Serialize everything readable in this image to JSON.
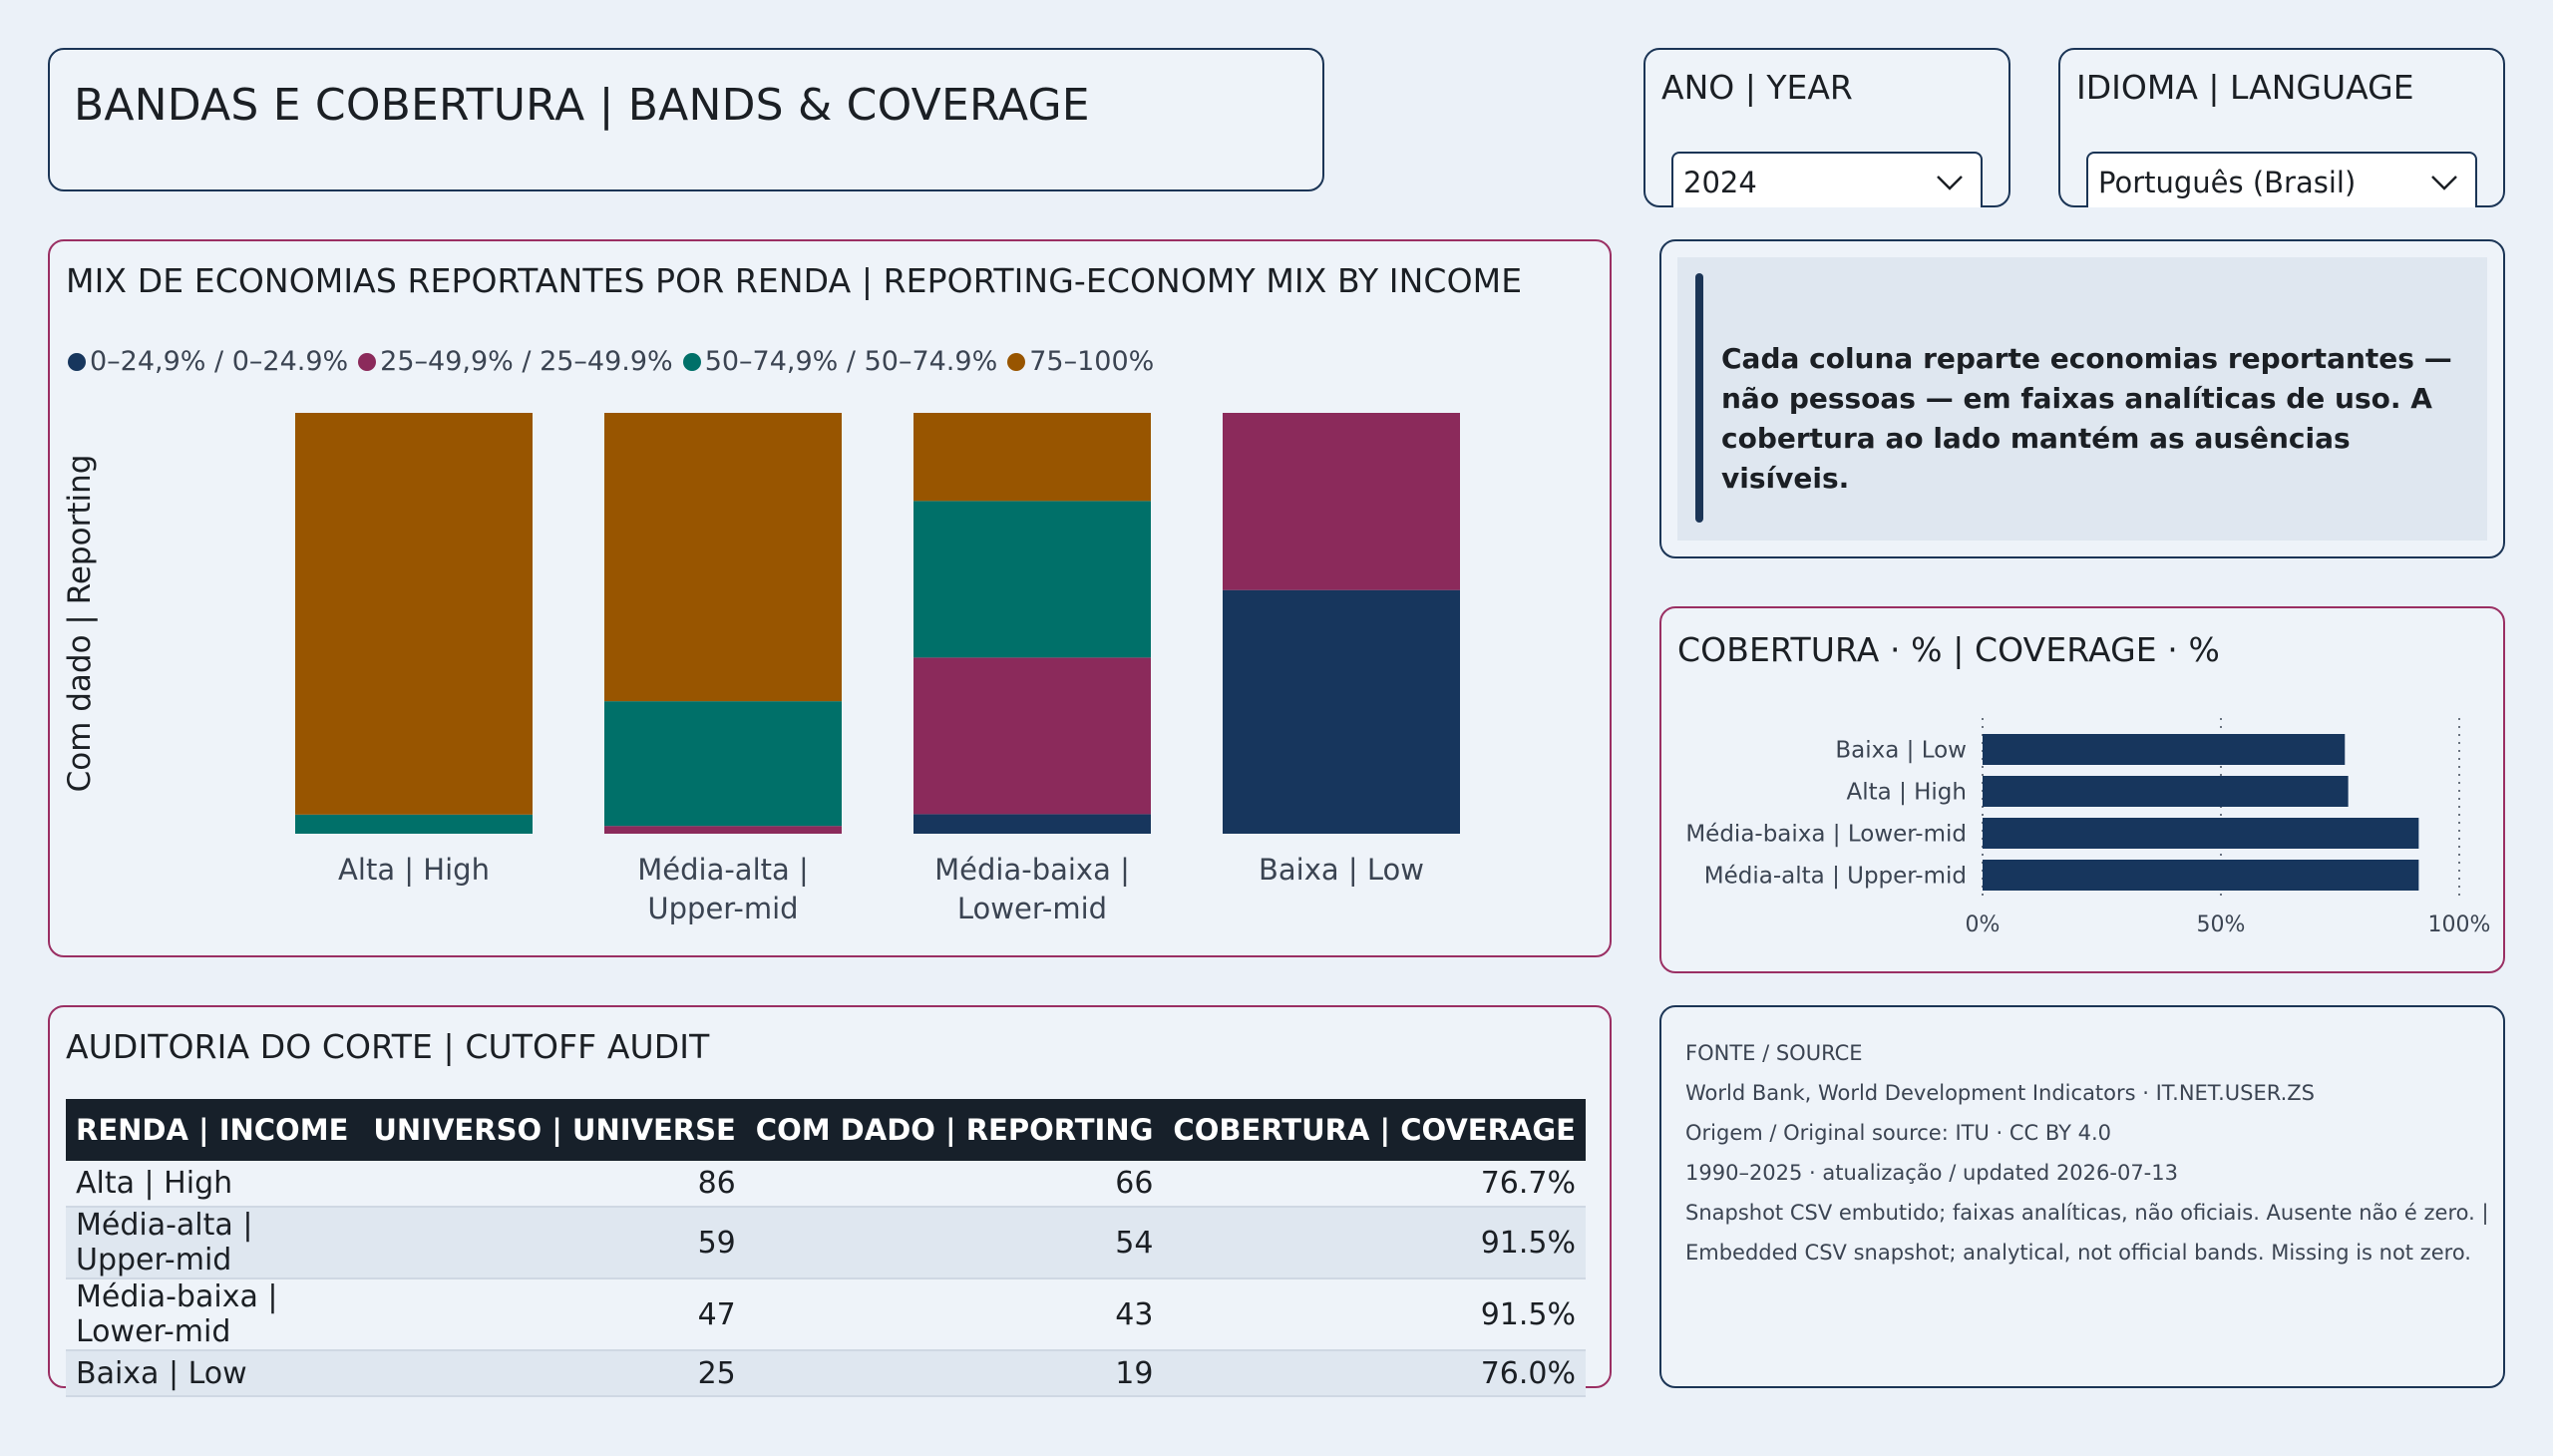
{
  "header": {
    "title": "BANDAS E COBERTURA | BANDS & COVERAGE"
  },
  "slicers": {
    "year": {
      "label": "ANO | YEAR",
      "value": "2024"
    },
    "language": {
      "label": "IDIOMA | LANGUAGE",
      "value": "Português (Brasil)"
    }
  },
  "mix_chart": {
    "title": "MIX DE ECONOMIAS REPORTANTES POR RENDA | REPORTING-ECONOMY MIX BY INCOME",
    "ylabel": "Com dado | Reporting",
    "legend": [
      {
        "label": "0–24,9% / 0–24.9%",
        "color": "#17365d"
      },
      {
        "label": "25–49,9% / 25–49.9%",
        "color": "#8b2a5b"
      },
      {
        "label": "50–74,9% / 50–74.9%",
        "color": "#007069"
      },
      {
        "label": "75–100%",
        "color": "#985500"
      }
    ]
  },
  "note": {
    "text": "Cada coluna reparte economias reportantes — não pessoas — em faixas analíticas de uso. A cobertura ao lado mantém as ausências visíveis."
  },
  "coverage_chart": {
    "title": "COBERTURA · % | COVERAGE · %"
  },
  "audit": {
    "title": "AUDITORIA DO CORTE | CUTOFF AUDIT",
    "columns": [
      "RENDA | INCOME",
      "UNIVERSO | UNIVERSE",
      "COM DADO | REPORTING",
      "COBERTURA | COVERAGE"
    ],
    "rows": [
      [
        "Alta | High",
        "86",
        "66",
        "76.7%"
      ],
      [
        "Média-alta | Upper-mid",
        "59",
        "54",
        "91.5%"
      ],
      [
        "Média-baixa | Lower-mid",
        "47",
        "43",
        "91.5%"
      ],
      [
        "Baixa | Low",
        "25",
        "19",
        "76.0%"
      ]
    ]
  },
  "source": {
    "lines": [
      "FONTE / SOURCE",
      "World Bank, World Development Indicators · IT.NET.USER.ZS",
      "Origem / Original source: ITU · CC BY 4.0",
      "1990–2025 · atualização / updated 2026-07-13",
      "Snapshot CSV embutido; faixas analíticas, não oficiais. Ausente não é zero. |",
      "Embedded CSV snapshot; analytical, not official bands. Missing is not zero."
    ]
  },
  "chart_data": [
    {
      "type": "bar",
      "stacked": true,
      "normalized": true,
      "categories": [
        [
          "Alta | High"
        ],
        [
          "Média-alta |",
          "Upper-mid"
        ],
        [
          "Média-baixa |",
          "Lower-mid"
        ],
        [
          "Baixa | Low"
        ]
      ],
      "series": [
        {
          "name": "0–24,9% / 0–24.9%",
          "color": "#17365d",
          "values": [
            0,
            0,
            2,
            11
          ]
        },
        {
          "name": "25–49,9% / 25–49.9%",
          "color": "#8b2a5b",
          "values": [
            0,
            1,
            16,
            8
          ]
        },
        {
          "name": "50–74,9% / 50–74.9%",
          "color": "#007069",
          "values": [
            3,
            16,
            16,
            0
          ]
        },
        {
          "name": "75–100%",
          "color": "#985500",
          "values": [
            63,
            37,
            9,
            0
          ]
        }
      ],
      "ylabel": "Com dado | Reporting"
    },
    {
      "type": "bar",
      "orientation": "horizontal",
      "categories": [
        "Baixa | Low",
        "Alta | High",
        "Média-baixa | Lower-mid",
        "Média-alta | Upper-mid"
      ],
      "values": [
        76.0,
        76.7,
        91.5,
        91.5
      ],
      "xlim": [
        0,
        100
      ],
      "xticks": [
        "0%",
        "50%",
        "100%"
      ],
      "color": "#17365d",
      "grid": "vertical-dotted"
    }
  ]
}
